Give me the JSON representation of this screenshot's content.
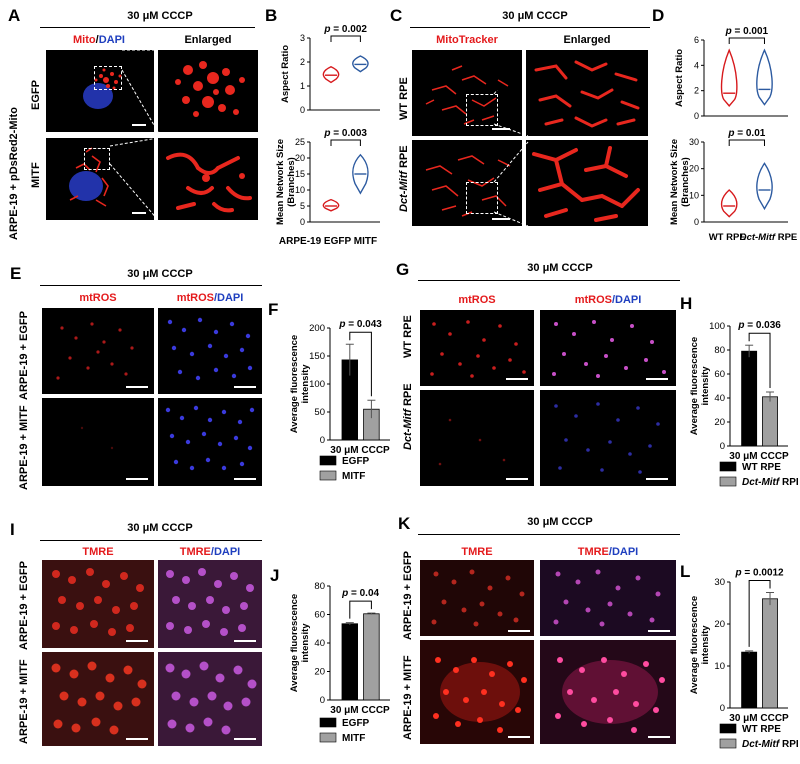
{
  "headers": {
    "a": "30 μM CCCP",
    "c": "30 μM CCCP",
    "e": "30 μM CCCP",
    "g": "30 μM CCCP",
    "i": "30 μM CCCP",
    "k": "30 μM CCCP"
  },
  "panel_letters": [
    "A",
    "B",
    "C",
    "D",
    "E",
    "F",
    "G",
    "H",
    "I",
    "J",
    "K",
    "L"
  ],
  "a": {
    "col1_red": "Mito",
    "col1_sep": "/",
    "col1_blue": "DAPI",
    "col2": "Enlarged",
    "side_label": "ARPE-19 + pDsRed2-Mito",
    "row1": "EGFP",
    "row2": "MITF"
  },
  "c": {
    "col1": "MitoTracker",
    "col2": "Enlarged",
    "row1": "WT RPE",
    "row2_it": "Dct-Mitf",
    "row2_rest": " RPE"
  },
  "e": {
    "col1": "mtROS",
    "col2_red": "mtROS",
    "col2_blue": "/DAPI",
    "row1": "ARPE-19 + EGFP",
    "row2": "ARPE-19 + MITF"
  },
  "g": {
    "col1": "mtROS",
    "col2_red": "mtROS",
    "col2_blue": "/DAPI",
    "row1": "WT RPE",
    "row2_it": "Dct-Mitf",
    "row2_rest": " RPE"
  },
  "i": {
    "col1": "TMRE",
    "col2_red": "TMRE",
    "col2_blue": "/DAPI",
    "row1": "ARPE-19 + EGFP",
    "row2": "ARPE-19 + MITF"
  },
  "k": {
    "col1": "TMRE",
    "col2_red": "TMRE",
    "col2_blue": "/DAPI",
    "row1": "ARPE-19 + EGFP",
    "row2": "ARPE-19 + MITF"
  },
  "chart_data": [
    {
      "panel": "B",
      "type": "violin",
      "subplots": [
        {
          "ylabel": "Aspect Ratio",
          "ylim": [
            0,
            3
          ],
          "yticks": [
            "0",
            "1",
            "2",
            "3"
          ],
          "pvalue": "p = 0.002",
          "series": [
            {
              "name": "ARPE-19 EGFP",
              "median": 1.45,
              "range": [
                1.15,
                1.8
              ],
              "color": "#d7191c"
            },
            {
              "name": "MITF",
              "median": 1.9,
              "range": [
                1.6,
                2.25
              ],
              "color": "#2c5aa0"
            }
          ]
        },
        {
          "ylabel": "Mean Network Size (Branches)",
          "ylim": [
            0,
            25
          ],
          "yticks": [
            "0",
            "5",
            "10",
            "15",
            "20",
            "25"
          ],
          "pvalue": "p = 0.003",
          "series": [
            {
              "name": "ARPE-19 EGFP",
              "median": 5,
              "range": [
                3.5,
                7
              ],
              "color": "#d7191c"
            },
            {
              "name": "MITF",
              "median": 15,
              "range": [
                9,
                21
              ],
              "color": "#2c5aa0"
            }
          ]
        }
      ],
      "xlabel": "ARPE-19 EGFP  MITF"
    },
    {
      "panel": "D",
      "type": "violin",
      "subplots": [
        {
          "ylabel": "Aspect Ratio",
          "ylim": [
            0,
            6
          ],
          "yticks": [
            "0",
            "2",
            "4",
            "6"
          ],
          "pvalue": "p = 0.001",
          "series": [
            {
              "name": "WT RPE",
              "median": 1.8,
              "range": [
                0.8,
                5.2
              ],
              "color": "#d7191c"
            },
            {
              "name": "Dct-Mitf RPE",
              "median": 2.1,
              "range": [
                0.9,
                5.2
              ],
              "color": "#2c5aa0"
            }
          ]
        },
        {
          "ylabel": "Mean Network Size (Branches)",
          "ylim": [
            0,
            30
          ],
          "yticks": [
            "0",
            "10",
            "20",
            "30"
          ],
          "pvalue": "p = 0.01",
          "series": [
            {
              "name": "WT RPE",
              "median": 6,
              "range": [
                2,
                12
              ],
              "color": "#d7191c"
            },
            {
              "name": "Dct-Mitf RPE",
              "median": 12,
              "range": [
                5,
                22
              ],
              "color": "#2c5aa0"
            }
          ]
        }
      ],
      "categories": [
        "WT RPE",
        "Dct-Mitf RPE"
      ]
    },
    {
      "panel": "F",
      "type": "bar",
      "categories": [
        "30 μM CCCP"
      ],
      "series": [
        {
          "name": "EGFP",
          "values": [
            143
          ],
          "error": [
            28
          ],
          "color": "#000000"
        },
        {
          "name": "MITF",
          "values": [
            55
          ],
          "error": [
            16
          ],
          "color": "#a0a0a0"
        }
      ],
      "ylabel": "Average fluorescence intensity",
      "ylim": [
        0,
        200
      ],
      "yticks": [
        "0",
        "50",
        "100",
        "150",
        "200"
      ],
      "pvalue": "p = 0.043"
    },
    {
      "panel": "H",
      "type": "bar",
      "categories": [
        "30 μM CCCP"
      ],
      "series": [
        {
          "name": "WT RPE",
          "values": [
            79
          ],
          "error": [
            5
          ],
          "color": "#000000"
        },
        {
          "name": "Dct-Mitf RPE",
          "values": [
            41
          ],
          "error": [
            4
          ],
          "color": "#a0a0a0"
        }
      ],
      "ylabel": "Average fluorescence intensity",
      "ylim": [
        0,
        100
      ],
      "yticks": [
        "0",
        "20",
        "40",
        "60",
        "80",
        "100"
      ],
      "pvalue": "p = 0.036"
    },
    {
      "panel": "J",
      "type": "bar",
      "categories": [
        "30 μM CCCP"
      ],
      "series": [
        {
          "name": "EGFP",
          "values": [
            53.5
          ],
          "error": [
            0.8
          ],
          "color": "#000000"
        },
        {
          "name": "MITF",
          "values": [
            60.5
          ],
          "error": [
            0.5
          ],
          "color": "#a0a0a0"
        }
      ],
      "ylabel": "Average fluorescence intensity",
      "ylim": [
        0,
        80
      ],
      "yticks": [
        "0",
        "20",
        "40",
        "60",
        "80"
      ],
      "pvalue": "p = 0.04"
    },
    {
      "panel": "L",
      "type": "bar",
      "categories": [
        "30 μM CCCP"
      ],
      "series": [
        {
          "name": "WT RPE",
          "values": [
            13.3
          ],
          "error": [
            0.3
          ],
          "color": "#000000"
        },
        {
          "name": "Dct-Mitf RPE",
          "values": [
            26
          ],
          "error": [
            1.5
          ],
          "color": "#a0a0a0"
        }
      ],
      "ylabel": "Average fluorescence intensity",
      "ylim": [
        0,
        30
      ],
      "yticks": [
        "0",
        "10",
        "20",
        "30"
      ],
      "pvalue": "p = 0.0012"
    }
  ]
}
